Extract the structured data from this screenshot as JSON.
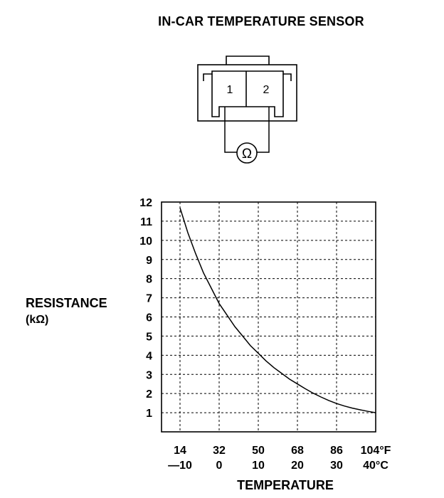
{
  "title": "IN-CAR TEMPERATURE SENSOR",
  "connector": {
    "pins": [
      "1",
      "2"
    ],
    "meter_symbol": "Ω"
  },
  "chart_data": {
    "type": "line",
    "ylabel": "RESISTANCE",
    "ylabel_unit": "(kΩ)",
    "xlabel": "TEMPERATURE",
    "y_ticks": [
      "1",
      "2",
      "3",
      "4",
      "5",
      "6",
      "7",
      "8",
      "9",
      "10",
      "11",
      "12"
    ],
    "x_ticks_f": [
      "14",
      "32",
      "50",
      "68",
      "86",
      "104°F"
    ],
    "x_ticks_c": [
      "—10",
      "0",
      "10",
      "20",
      "30",
      "40°C"
    ],
    "xlim": [
      -12,
      40
    ],
    "ylim": [
      0,
      12
    ],
    "grid": true,
    "series": [
      {
        "x": [
          -10,
          -8,
          -6,
          -4,
          -2,
          0,
          2,
          4,
          6,
          8,
          10,
          12,
          14,
          16,
          18,
          20,
          22,
          24,
          26,
          28,
          30,
          32,
          34,
          36,
          38,
          40
        ],
        "y": [
          11.7,
          10.4,
          9.3,
          8.3,
          7.5,
          6.7,
          6.1,
          5.5,
          5.0,
          4.5,
          4.1,
          3.7,
          3.35,
          3.05,
          2.75,
          2.5,
          2.25,
          2.02,
          1.82,
          1.64,
          1.48,
          1.35,
          1.24,
          1.15,
          1.07,
          1.0
        ]
      }
    ]
  }
}
